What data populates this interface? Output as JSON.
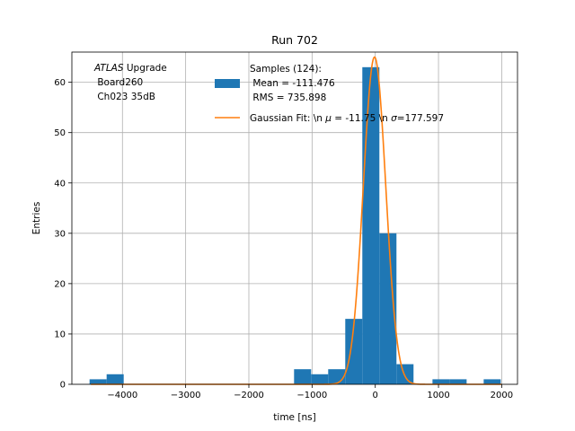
{
  "chart_data": {
    "type": "bar",
    "title": "Run 702",
    "xlabel": "time [ns]",
    "ylabel": "Entries",
    "xlim": [
      -4800,
      2250
    ],
    "ylim": [
      0,
      66
    ],
    "grid": true,
    "xticks": [
      -4000,
      -3000,
      -2000,
      -1000,
      0,
      1000,
      2000
    ],
    "xtick_labels": [
      "−4000",
      "−3000",
      "−2000",
      "−1000",
      "0",
      "1000",
      "2000"
    ],
    "yticks": [
      0,
      10,
      20,
      30,
      40,
      50,
      60
    ],
    "ytick_labels": [
      "0",
      "10",
      "20",
      "30",
      "40",
      "50",
      "60"
    ],
    "histogram": {
      "color": "#1f77b4",
      "bin_width": 270,
      "bin_lefts": [
        -4520,
        -4250,
        -1285,
        -1015,
        -745,
        -475,
        -205,
        65,
        335,
        905,
        1175,
        1715
      ],
      "counts": [
        1,
        2,
        3,
        2,
        3,
        13,
        63,
        30,
        4,
        1,
        1,
        1
      ]
    },
    "fit": {
      "color": "#ff7f0e",
      "mu": -11.75,
      "sigma": 177.597,
      "amplitude": 65,
      "x_range": [
        -4500,
        2000
      ]
    },
    "annotation": {
      "line1_italic": "ATLAS",
      "line1_rest": " Upgrade",
      "line2": " Board260",
      "line3": " Ch023 35dB"
    },
    "legend": {
      "placement": "upper center",
      "hist_line1": "Samples (124):",
      "hist_line2": " Mean = -111.476",
      "hist_line3": " RMS = 735.898",
      "fit_part1": "Gaussian Fit: \\n ",
      "fit_mu_symbol": "μ",
      "fit_part2": " = -11.75 \\n ",
      "fit_sigma_symbol": "σ",
      "fit_part3": "=177.597"
    }
  }
}
